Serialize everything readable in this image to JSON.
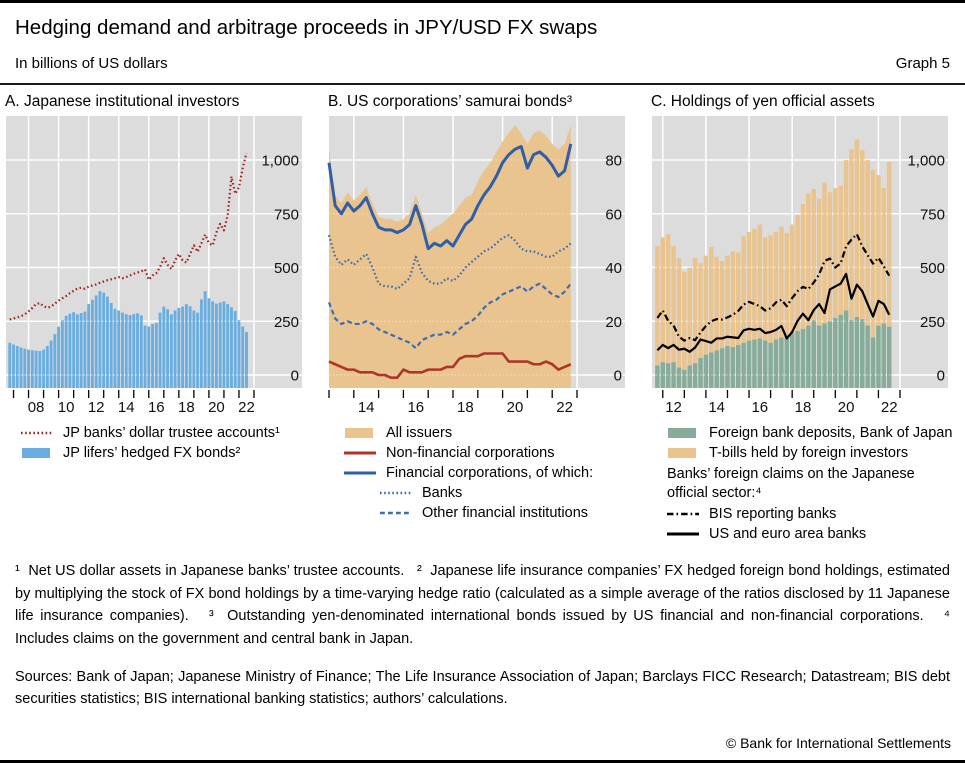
{
  "header": {
    "title": "Hedging demand and arbitrage proceeds in JPY/USD FX swaps",
    "subtitle": "In billions of US dollars",
    "graph_label": "Graph 5"
  },
  "colors": {
    "plot_bg": "#dcdcdc",
    "grid": "#ffffff",
    "bar_blue": "#6aade1",
    "red_a": "#a1261f",
    "red_b": "#ae352a",
    "blue": "#2e5fa8",
    "blue2": "#3d6cb5",
    "tan": "#e9c48f",
    "green": "#87ad9a",
    "black": "#000000"
  },
  "panels": [
    {
      "key": "a",
      "title": "A. Japanese institutional investors",
      "legend": [
        {
          "type": "dotted",
          "color": "red_a",
          "label": "JP banks’ dollar trustee accounts¹",
          "indent": false
        },
        {
          "type": "bar",
          "color": "bar_blue",
          "label": "JP lifers’ hedged FX bonds²",
          "indent": false
        }
      ]
    },
    {
      "key": "b",
      "title": "B. US corporations’ samurai bonds³",
      "legend": [
        {
          "type": "area",
          "color": "tan",
          "label": "All issuers",
          "indent": false
        },
        {
          "type": "line",
          "color": "red_b",
          "label": "Non-financial corporations",
          "indent": false
        },
        {
          "type": "line",
          "color": "blue",
          "label": "Financial corporations, of which:",
          "indent": false
        },
        {
          "type": "dotted",
          "color": "blue2",
          "label": "Banks",
          "indent": true
        },
        {
          "type": "dashed",
          "color": "blue2",
          "label": "Other financial institutions",
          "indent": true
        }
      ]
    },
    {
      "key": "c",
      "title": "C. Holdings of yen official assets",
      "legend": [
        {
          "type": "area",
          "color": "green",
          "label": "Foreign bank deposits, Bank of Japan",
          "indent": false
        },
        {
          "type": "area",
          "color": "tan",
          "label": "T-bills held by foreign investors",
          "indent": false
        },
        {
          "type": "header",
          "label": "Banks’ foreign claims on the Japanese official sector:⁴"
        },
        {
          "type": "dashdot",
          "color": "black",
          "label": "BIS reporting banks",
          "indent": false
        },
        {
          "type": "line",
          "color": "black",
          "label": "US and euro area banks",
          "indent": false
        }
      ]
    }
  ],
  "chart_data": [
    {
      "key": "a",
      "type": "bar",
      "title": "A. Japanese institutional investors",
      "ylabel": "Billions of US dollars",
      "xmin": 2006.5,
      "xmax": 2023,
      "y_per_span": 1000,
      "ylim": [
        -60,
        1200
      ],
      "yticks": [
        {
          "v": 0,
          "label": "0"
        },
        {
          "v": 250,
          "label": "250"
        },
        {
          "v": 500,
          "label": "500"
        },
        {
          "v": 750,
          "label": "750"
        },
        {
          "v": 1000,
          "label": "1,000"
        }
      ],
      "vgrid": [
        2008,
        2010,
        2012,
        2014,
        2016,
        2018,
        2020,
        2022,
        2023
      ],
      "xticks": [
        2007,
        2008,
        2009,
        2010,
        2011,
        2012,
        2013,
        2014,
        2015,
        2016,
        2017,
        2018,
        2019,
        2020,
        2021,
        2022,
        2023
      ],
      "xlabels": [
        {
          "pos": 2008.5,
          "text": "08"
        },
        {
          "pos": 2010.5,
          "text": "10"
        },
        {
          "pos": 2012.5,
          "text": "12"
        },
        {
          "pos": 2014.5,
          "text": "14"
        },
        {
          "pos": 2016.5,
          "text": "16"
        },
        {
          "pos": 2018.5,
          "text": "18"
        },
        {
          "pos": 2020.5,
          "text": "20"
        },
        {
          "pos": 2022.5,
          "text": "22"
        }
      ],
      "bars": {
        "name": "JP lifers’ hedged FX bonds",
        "color": "bar_blue",
        "x0": 2006.75,
        "step": 0.25,
        "values": [
          150,
          142,
          135,
          128,
          122,
          118,
          115,
          113,
          112,
          118,
          135,
          160,
          190,
          225,
          255,
          275,
          285,
          292,
          282,
          288,
          295,
          330,
          350,
          370,
          390,
          383,
          365,
          335,
          308,
          300,
          290,
          283,
          278,
          283,
          287,
          278,
          230,
          226,
          237,
          242,
          290,
          318,
          306,
          282,
          300,
          312,
          318,
          330,
          320,
          300,
          290,
          352,
          390,
          357,
          342,
          332,
          337,
          342,
          330,
          315,
          298,
          255,
          225,
          200
        ]
      },
      "lines": [
        {
          "name": "JP banks’ dollar trustee accounts",
          "style": "dotted",
          "color": "red_a",
          "width": 2.2,
          "x0": 2006.75,
          "step": 0.25,
          "values": [
            258,
            263,
            268,
            274,
            282,
            296,
            312,
            330,
            334,
            320,
            313,
            318,
            332,
            346,
            357,
            367,
            380,
            392,
            402,
            406,
            401,
            411,
            416,
            421,
            429,
            435,
            441,
            445,
            450,
            455,
            450,
            456,
            463,
            471,
            477,
            482,
            491,
            443,
            463,
            473,
            503,
            543,
            513,
            493,
            533,
            563,
            533,
            523,
            563,
            603,
            573,
            613,
            653,
            613,
            603,
            663,
            703,
            673,
            743,
            923,
            843,
            873,
            963,
            1032
          ]
        }
      ]
    },
    {
      "key": "b",
      "type": "area",
      "title": "B. US corporations’ samurai bonds",
      "ylabel": "Billions of US dollars",
      "xmin": 2013,
      "xmax": 2023,
      "y_per_span": 80,
      "ylim": [
        -5,
        96
      ],
      "yticks": [
        {
          "v": 0,
          "label": "0"
        },
        {
          "v": 20,
          "label": "20"
        },
        {
          "v": 40,
          "label": "40"
        },
        {
          "v": 60,
          "label": "60"
        },
        {
          "v": 80,
          "label": "80"
        }
      ],
      "vgrid": [
        2014,
        2016,
        2018,
        2020,
        2022,
        2023
      ],
      "xticks": [
        2013,
        2014,
        2015,
        2016,
        2017,
        2018,
        2019,
        2020,
        2021,
        2022,
        2023
      ],
      "xlabels": [
        {
          "pos": 2014.5,
          "text": "14"
        },
        {
          "pos": 2016.5,
          "text": "16"
        },
        {
          "pos": 2018.5,
          "text": "18"
        },
        {
          "pos": 2020.5,
          "text": "20"
        },
        {
          "pos": 2022.5,
          "text": "22"
        }
      ],
      "area": {
        "name": "All issuers",
        "color": "tan",
        "x0": 2013,
        "step": 0.25,
        "values": [
          84,
          67,
          64,
          68,
          65,
          67,
          70,
          64,
          59,
          58,
          58,
          57,
          58,
          60,
          67,
          60,
          53,
          55,
          56,
          58,
          60,
          63,
          66,
          67,
          72,
          76,
          79,
          83,
          87,
          90,
          93,
          90,
          86,
          90,
          91,
          89,
          86,
          84,
          86,
          93
        ]
      },
      "lines": [
        {
          "name": "Non-financial corporations",
          "style": "solid",
          "color": "red_b",
          "width": 2.6,
          "x0": 2013,
          "step": 0.25,
          "values": [
            5,
            4,
            3,
            2,
            2,
            1,
            1,
            1,
            0,
            0,
            -1,
            -1,
            2,
            1,
            1,
            1,
            2,
            2,
            2,
            3,
            3,
            6,
            7,
            7,
            7,
            8,
            8,
            8,
            8,
            5,
            5,
            5,
            5,
            4,
            4,
            5,
            4,
            2,
            3,
            4
          ]
        },
        {
          "name": "Other financial institutions",
          "style": "dashed",
          "color": "blue2",
          "width": 2.2,
          "x0": 2013,
          "step": 0.25,
          "values": [
            27,
            21,
            19,
            20,
            19,
            19,
            20,
            19,
            17,
            16,
            15,
            14,
            13,
            12,
            10,
            13,
            14,
            15,
            15,
            16,
            15,
            17,
            19,
            20,
            22,
            25,
            27,
            28,
            30,
            31,
            32,
            33,
            31,
            33,
            34,
            32,
            30,
            29,
            31,
            34
          ]
        },
        {
          "name": "Banks",
          "style": "dotted",
          "color": "blue2",
          "width": 2.2,
          "x0": 2013,
          "step": 0.25,
          "values": [
            52,
            44,
            41,
            43,
            41,
            43,
            45,
            40,
            34,
            33,
            33,
            32,
            34,
            36,
            44,
            38,
            35,
            34,
            34,
            36,
            35,
            37,
            40,
            42,
            44,
            46,
            47,
            49,
            51,
            52,
            50,
            47,
            46,
            46,
            45,
            44,
            44,
            46,
            47,
            49
          ]
        },
        {
          "name": "Financial corporations, of which",
          "style": "solid",
          "color": "blue",
          "width": 3,
          "x0": 2013,
          "step": 0.25,
          "values": [
            79,
            63,
            60,
            64,
            61,
            63,
            66,
            60,
            55,
            54,
            54,
            53,
            54,
            56,
            63,
            56,
            47,
            49,
            48,
            50,
            48,
            52,
            56,
            58,
            63,
            67,
            70,
            74,
            79,
            82,
            84,
            85,
            77,
            82,
            83,
            81,
            78,
            74,
            76,
            86
          ]
        }
      ]
    },
    {
      "key": "c",
      "type": "stacked-bar",
      "title": "C. Holdings of yen official assets",
      "ylabel": "Billions of US dollars",
      "xmin": 2011.5,
      "xmax": 2023,
      "y_per_span": 1000,
      "ylim": [
        -60,
        1200
      ],
      "yticks": [
        {
          "v": 0,
          "label": "0"
        },
        {
          "v": 250,
          "label": "250"
        },
        {
          "v": 500,
          "label": "500"
        },
        {
          "v": 750,
          "label": "750"
        },
        {
          "v": 1000,
          "label": "1,000"
        }
      ],
      "vgrid": [
        2012,
        2014,
        2016,
        2018,
        2020,
        2022,
        2023
      ],
      "xticks": [
        2012,
        2013,
        2014,
        2015,
        2016,
        2017,
        2018,
        2019,
        2020,
        2021,
        2022,
        2023
      ],
      "xlabels": [
        {
          "pos": 2012.5,
          "text": "12"
        },
        {
          "pos": 2014.5,
          "text": "14"
        },
        {
          "pos": 2016.5,
          "text": "16"
        },
        {
          "pos": 2018.5,
          "text": "18"
        },
        {
          "pos": 2020.5,
          "text": "20"
        },
        {
          "pos": 2022.5,
          "text": "22"
        }
      ],
      "stack": {
        "x0": 2011.75,
        "step": 0.25,
        "bottom": {
          "name": "Foreign bank deposits, Bank of Japan",
          "color": "green",
          "values": [
            45,
            60,
            55,
            60,
            35,
            25,
            45,
            55,
            80,
            95,
            105,
            115,
            125,
            135,
            130,
            140,
            150,
            160,
            165,
            170,
            160,
            150,
            165,
            175,
            185,
            195,
            205,
            215,
            230,
            255,
            230,
            240,
            250,
            265,
            280,
            300,
            255,
            270,
            260,
            230,
            175,
            230,
            240,
            225
          ]
        },
        "total": {
          "name": "Total incl. T-bills held by foreign investors",
          "color": "tan",
          "values": [
            600,
            640,
            655,
            600,
            545,
            480,
            500,
            545,
            520,
            555,
            595,
            550,
            530,
            555,
            575,
            570,
            645,
            665,
            680,
            700,
            640,
            650,
            665,
            690,
            660,
            700,
            745,
            795,
            845,
            865,
            820,
            895,
            850,
            870,
            880,
            1000,
            1050,
            1095,
            1045,
            1000,
            955,
            930,
            870,
            990
          ]
        }
      },
      "lines": [
        {
          "name": "BIS reporting banks",
          "style": "dashdot",
          "color": "black",
          "width": 2.2,
          "x0": 2011.75,
          "step": 0.25,
          "values": [
            265,
            300,
            252,
            230,
            178,
            160,
            172,
            162,
            198,
            228,
            250,
            260,
            258,
            268,
            280,
            298,
            328,
            340,
            330,
            320,
            300,
            310,
            338,
            350,
            320,
            358,
            390,
            410,
            400,
            430,
            468,
            530,
            542,
            500,
            520,
            598,
            630,
            655,
            598,
            558,
            518,
            545,
            505,
            462
          ]
        },
        {
          "name": "US and euro area banks",
          "style": "solid",
          "color": "black",
          "width": 2.2,
          "x0": 2011.75,
          "step": 0.25,
          "values": [
            115,
            140,
            125,
            140,
            118,
            122,
            108,
            128,
            165,
            158,
            150,
            170,
            170,
            178,
            175,
            172,
            208,
            215,
            210,
            215,
            195,
            200,
            210,
            228,
            170,
            200,
            252,
            285,
            255,
            302,
            330,
            288,
            398,
            412,
            425,
            470,
            355,
            420,
            390,
            330,
            272,
            345,
            330,
            280
          ]
        }
      ]
    }
  ],
  "footnotes": "¹  Net US dollar assets in Japanese banks’ trustee accounts.   ²  Japanese life insurance companies’ FX hedged foreign bond holdings, estimated by multiplying the stock of FX bond holdings by a time-varying hedge ratio (calculated as a simple average of the ratios disclosed by 11 Japanese life insurance companies).   ³  Outstanding yen-denominated international bonds issued by US financial and non-financial corporations.   ⁴  Includes claims on the government and central bank in Japan.",
  "sources": "Sources: Bank of Japan; Japanese Ministry of Finance; The Life Insurance Association of Japan; Barclays FICC Research; Datastream; BIS debt securities statistics; BIS international banking statistics; authors’ calculations.",
  "copyright": "© Bank for International Settlements"
}
